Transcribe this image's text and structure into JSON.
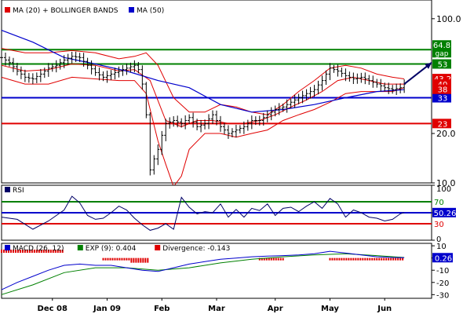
{
  "chart_data": [
    {
      "type": "line",
      "panel": "price",
      "scale": "log",
      "ylim": [
        10,
        130
      ],
      "y_ticks": [
        {
          "value": 100,
          "label": "100.0"
        },
        {
          "value": 20,
          "label": "20.0"
        },
        {
          "value": 10,
          "label": "10.0"
        }
      ],
      "x_ticks": [
        {
          "t": 13,
          "label": "Dec 08"
        },
        {
          "t": 27,
          "label": "Jan 09"
        },
        {
          "t": 41,
          "label": "Feb"
        },
        {
          "t": 55,
          "label": "Mar"
        },
        {
          "t": 70,
          "label": "Apr"
        },
        {
          "t": 84,
          "label": "May"
        },
        {
          "t": 98,
          "label": "Jun"
        }
      ],
      "legend": [
        {
          "label": "MA (20) + BOLLINGER BANDS",
          "color": "#e00000"
        },
        {
          "label": "MA (50)",
          "color": "#0000cc"
        }
      ],
      "price": {
        "x": [
          0,
          2,
          4,
          6,
          8,
          10,
          12,
          14,
          16,
          18,
          20,
          22,
          24,
          26,
          28,
          30,
          32,
          34,
          35,
          36,
          37,
          38,
          40,
          42,
          44,
          46,
          48,
          50,
          52,
          54,
          56,
          58,
          60,
          62,
          64,
          66,
          68,
          70,
          72,
          74,
          76,
          78,
          80,
          82,
          84,
          86,
          88,
          90,
          92,
          94,
          96,
          98,
          100,
          102,
          103
        ],
        "y": [
          58,
          54,
          48,
          44,
          43,
          46,
          50,
          52,
          56,
          59,
          58,
          52,
          47,
          44,
          46,
          48,
          50,
          52,
          49,
          40,
          26,
          12,
          16,
          23,
          24,
          23,
          25,
          22,
          23,
          26,
          22,
          20,
          21,
          22,
          24,
          24,
          26,
          28,
          29,
          31,
          33,
          35,
          37,
          42,
          50,
          48,
          45,
          43,
          44,
          42,
          40,
          38,
          37,
          38,
          40
        ]
      },
      "ma20": {
        "x": [
          0,
          6,
          12,
          18,
          24,
          30,
          34,
          38,
          42,
          46,
          50,
          54,
          58,
          62,
          66,
          70,
          74,
          78,
          82,
          86,
          90,
          94,
          98,
          103
        ],
        "y": [
          52,
          48,
          49,
          53,
          52,
          48,
          49,
          42,
          24,
          22,
          24,
          24,
          23,
          23,
          24,
          26,
          29,
          32,
          36,
          42,
          44,
          42,
          40,
          40
        ]
      },
      "bb_upper": {
        "x": [
          0,
          6,
          12,
          18,
          24,
          30,
          34,
          37,
          40,
          44,
          48,
          52,
          56,
          60,
          64,
          68,
          72,
          76,
          80,
          84,
          88,
          92,
          96,
          100,
          103
        ],
        "y": [
          66,
          62,
          62,
          64,
          62,
          57,
          59,
          62,
          52,
          33,
          27,
          27,
          30,
          29,
          27,
          26,
          30,
          36,
          42,
          50,
          52,
          50,
          46,
          44,
          43
        ]
      },
      "bb_lower": {
        "x": [
          0,
          6,
          12,
          18,
          24,
          30,
          34,
          37,
          40,
          42,
          44,
          46,
          48,
          52,
          56,
          60,
          64,
          68,
          72,
          76,
          80,
          84,
          88,
          92,
          96,
          100,
          103
        ],
        "y": [
          44,
          40,
          40,
          44,
          43,
          42,
          42,
          35,
          18,
          13,
          9.5,
          11,
          16,
          20,
          20,
          19,
          20,
          21,
          24,
          26,
          28,
          31,
          35,
          36,
          36,
          36,
          38
        ]
      },
      "ma50": {
        "x": [
          0,
          8,
          16,
          24,
          32,
          40,
          48,
          56,
          64,
          72,
          80,
          88,
          96,
          103
        ],
        "y": [
          85,
          72,
          58,
          53,
          48,
          42,
          38,
          30,
          27,
          28,
          30,
          33,
          36,
          37
        ]
      },
      "hlines": [
        {
          "value": 64.8,
          "color": "#008000",
          "label": "64.8",
          "sublabel": "gap"
        },
        {
          "value": 53,
          "color": "#008000",
          "label": "53"
        },
        {
          "value": 33,
          "color": "#0000cc",
          "label": "33"
        },
        {
          "value": 23,
          "color": "#e00000",
          "label": "23"
        }
      ],
      "last_labels": [
        {
          "value": 43.2,
          "label": "43.2",
          "color": "#e00000"
        },
        {
          "value": 40,
          "label": "40",
          "color": "#e00000"
        },
        {
          "value": 38,
          "label": "38",
          "color": "#e00000"
        }
      ],
      "arrow": {
        "from": [
          103,
          40
        ],
        "to": [
          110,
          54
        ]
      }
    },
    {
      "type": "line",
      "panel": "rsi",
      "legend": [
        {
          "label": "RSI",
          "color": "#000066"
        }
      ],
      "ylim": [
        0,
        100
      ],
      "y_ticks": [
        {
          "value": 100,
          "label": "100"
        },
        {
          "value": 50,
          "label": "50"
        },
        {
          "value": 0,
          "label": "0"
        }
      ],
      "levels": [
        {
          "value": 70,
          "color": "#008000",
          "label": "70"
        },
        {
          "value": 30,
          "color": "#e00000",
          "label": "30"
        }
      ],
      "rsi": {
        "x": [
          0,
          4,
          8,
          12,
          16,
          18,
          20,
          22,
          24,
          26,
          28,
          30,
          32,
          34,
          36,
          38,
          40,
          42,
          44,
          46,
          48,
          50,
          52,
          54,
          56,
          58,
          60,
          62,
          64,
          66,
          68,
          70,
          72,
          74,
          76,
          78,
          80,
          82,
          84,
          86,
          88,
          90,
          92,
          94,
          96,
          98,
          100,
          102,
          103
        ],
        "y": [
          42,
          38,
          20,
          35,
          55,
          80,
          68,
          45,
          38,
          40,
          50,
          62,
          55,
          40,
          28,
          18,
          22,
          30,
          20,
          78,
          60,
          48,
          52,
          50,
          66,
          42,
          56,
          42,
          58,
          54,
          66,
          45,
          58,
          60,
          52,
          62,
          70,
          58,
          76,
          66,
          42,
          55,
          50,
          42,
          40,
          35,
          38,
          48,
          50.26
        ]
      },
      "last_value": {
        "value": 50.26,
        "label": "50.26"
      }
    },
    {
      "type": "line",
      "panel": "macd",
      "legend": [
        {
          "label": "MACD (26, 12)",
          "color": "#0000cc"
        },
        {
          "label": "EXP (9): 0.404",
          "color": "#008000"
        },
        {
          "label": "Divergence: -0.143",
          "color": "#e00000"
        }
      ],
      "ylim": [
        -33,
        12
      ],
      "y_ticks": [
        {
          "value": 10,
          "label": "10"
        },
        {
          "value": 0,
          "label": "0"
        },
        {
          "value": -10,
          "label": "-10"
        },
        {
          "value": -20,
          "label": "-20"
        },
        {
          "value": -30,
          "label": "-30"
        }
      ],
      "macd": {
        "x": [
          0,
          4,
          8,
          12,
          16,
          20,
          24,
          28,
          32,
          36,
          40,
          44,
          48,
          52,
          56,
          60,
          64,
          68,
          72,
          76,
          80,
          84,
          88,
          92,
          96,
          100,
          103
        ],
        "y": [
          -26,
          -20,
          -15,
          -10,
          -6,
          -5,
          -6,
          -6,
          -8,
          -10,
          -11,
          -8,
          -5,
          -3,
          -1,
          0,
          1,
          1.5,
          2,
          2.5,
          3.5,
          5.5,
          4,
          2.5,
          1,
          0.4,
          0.26
        ]
      },
      "signal": {
        "x": [
          0,
          8,
          16,
          24,
          32,
          40,
          48,
          56,
          64,
          72,
          80,
          88,
          96,
          103
        ],
        "y": [
          -30,
          -22,
          -12,
          -8,
          -8,
          -10,
          -8,
          -4,
          -1,
          1,
          2.5,
          3.5,
          2,
          0.404
        ]
      },
      "divergence_bars": {
        "x_start": 0,
        "x_end": 103,
        "positive_from": 0,
        "positive_to": 16,
        "negative_ranges": [
          [
            26,
            38
          ],
          [
            66,
            72
          ],
          [
            84,
            103
          ]
        ]
      },
      "last_value": {
        "value": 0.26,
        "label": "0.26"
      }
    }
  ]
}
